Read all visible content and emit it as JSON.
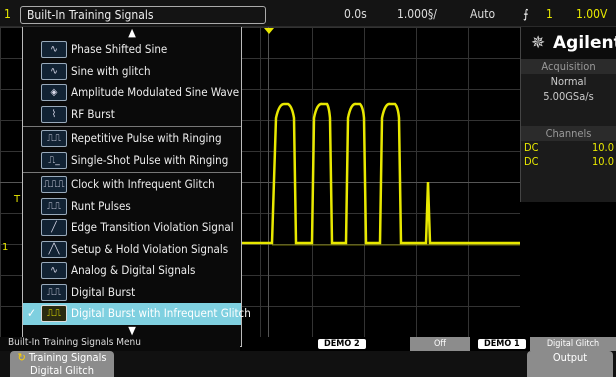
{
  "topbar": {
    "channel_num": "1",
    "time_offset": "0.0s",
    "time_scale": "1.000§/",
    "trigger_mode": "Auto",
    "trigger_source": "1",
    "trigger_level": "1.00V"
  },
  "menu": {
    "title": "Built-In Training Signals",
    "items": [
      {
        "label": "Phase Shifted Sine",
        "icon": "phase-sine-icon",
        "glyph": "∿"
      },
      {
        "label": "Sine with glitch",
        "icon": "sine-glitch-icon",
        "glyph": "∿"
      },
      {
        "label": "Amplitude Modulated Sine Wave",
        "icon": "am-sine-icon",
        "glyph": "◈"
      },
      {
        "label": "RF Burst",
        "icon": "rf-burst-icon",
        "glyph": "⌇"
      },
      {
        "label": "Repetitive Pulse with Ringing",
        "icon": "pulse-ringing-icon",
        "glyph": "⎍⎍"
      },
      {
        "label": "Single-Shot Pulse with Ringing",
        "icon": "single-pulse-icon",
        "glyph": "⎍_"
      },
      {
        "label": "Clock with Infrequent Glitch",
        "icon": "clock-glitch-icon",
        "glyph": "⎍⎍⎍"
      },
      {
        "label": "Runt Pulses",
        "icon": "runt-pulse-icon",
        "glyph": "⎍⎍"
      },
      {
        "label": "Edge Transition Violation Signal",
        "icon": "edge-violation-icon",
        "glyph": "╱"
      },
      {
        "label": "Setup & Hold Violation Signals",
        "icon": "setup-hold-icon",
        "glyph": "╱╲"
      },
      {
        "label": "Analog & Digital Signals",
        "icon": "analog-digital-icon",
        "glyph": "∿"
      },
      {
        "label": "Digital Burst",
        "icon": "digital-burst-icon",
        "glyph": "⎍⎍"
      },
      {
        "label": "Digital Burst with Infrequent Glitch",
        "icon": "digital-burst-glitch-icon",
        "glyph": "⎍⎍"
      }
    ],
    "selected_index": 12,
    "check_glyph": "✓"
  },
  "right_panel": {
    "brand": "Agilent",
    "acquisition_header": "Acquisition",
    "acquisition_mode": "Normal",
    "sample_rate": "5.00GSa/s",
    "channels_header": "Channels",
    "channels": [
      {
        "coupling": "DC",
        "value": "10.0"
      },
      {
        "coupling": "DC",
        "value": "10.0"
      }
    ]
  },
  "bottom": {
    "menu_label": "Built-In Training Signals Menu",
    "demo2": "DEMO 2",
    "demo2_state": "Off",
    "demo1": "DEMO 1",
    "demo1_state": "Digital Glitch",
    "softkey_training": "Training Signals",
    "softkey_training_sub": "Digital Glitch",
    "softkey_output": "Output"
  },
  "colors": {
    "trace": "#e8e800",
    "selection": "#7fd0e0",
    "panel": "#1b1b1b"
  }
}
